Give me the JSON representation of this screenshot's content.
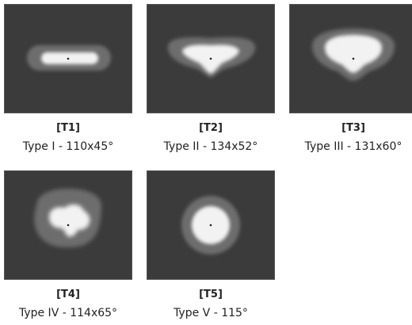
{
  "patterns": [
    {
      "code": "[T1]",
      "label": "Type I - 110x45°"
    },
    {
      "code": "[T2]",
      "label": "Type II - 134x52°"
    },
    {
      "code": "[T3]",
      "label": "Type III - 131x60°"
    },
    {
      "code": "[T4]",
      "label": "Type IV - 114x65°"
    },
    {
      "code": "[T5]",
      "label": "Type V - 115°"
    }
  ],
  "colors": {
    "tile_background": "#3b3b3b",
    "outer_zone": "#6d6d6d",
    "inner_zone": "#f2f2f2",
    "center_mark": "#222222"
  }
}
